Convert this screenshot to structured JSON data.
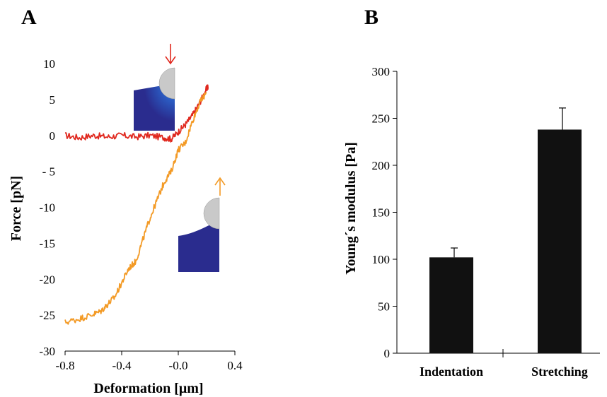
{
  "chart_data": [
    {
      "panel": "A",
      "type": "line",
      "title": "",
      "xlabel": "Deformation [μm]",
      "ylabel": "Force [pN]",
      "xlim": [
        -0.8,
        0.4
      ],
      "ylim": [
        -30,
        10
      ],
      "x_ticks": [
        -0.8,
        -0.4,
        0.0,
        0.4
      ],
      "x_tick_labels": [
        "-0.8",
        "-0.4",
        "-0.0",
        "0.4"
      ],
      "y_ticks": [
        10,
        5,
        0,
        -5,
        -10,
        -15,
        -20,
        -25,
        -30
      ],
      "y_tick_labels": [
        "10",
        "5",
        "0",
        "- 5",
        "-10",
        "-15",
        "-20",
        "-25",
        "-30"
      ],
      "grid": false,
      "legend": "none",
      "series": [
        {
          "color": "#e0281e",
          "arrow": "down",
          "x": [
            -0.8,
            -0.7,
            -0.6,
            -0.5,
            -0.4,
            -0.3,
            -0.2,
            -0.1,
            -0.05,
            0.0,
            0.05,
            0.1,
            0.15,
            0.2,
            0.21
          ],
          "y": [
            0,
            -0.3,
            0,
            -0.2,
            0,
            -0.2,
            0,
            -0.3,
            -0.5,
            0.5,
            1.5,
            2.8,
            4.5,
            6.5,
            6.8
          ]
        },
        {
          "color": "#f39a25",
          "arrow": "up",
          "x": [
            -0.8,
            -0.7,
            -0.62,
            -0.55,
            -0.5,
            -0.45,
            -0.4,
            -0.35,
            -0.3,
            -0.25,
            -0.2,
            -0.15,
            -0.1,
            -0.05,
            0.0,
            0.05,
            0.1,
            0.15,
            0.2
          ],
          "y": [
            -26,
            -25.5,
            -25,
            -24.5,
            -23.5,
            -22.5,
            -20.5,
            -18.5,
            -17.5,
            -14.5,
            -11.5,
            -9,
            -6.5,
            -5,
            -2,
            -1,
            2,
            4.5,
            6
          ]
        }
      ],
      "insets": [
        {
          "name": "approach-inset",
          "arrow_color": "#e0281e",
          "description_colors": [
            "#1f1f8f",
            "#2b7fd9",
            "#f0e04a",
            "#c8c8c8"
          ]
        },
        {
          "name": "retract-inset",
          "arrow_color": "#f39a25",
          "description_colors": [
            "#1f1f8f",
            "#c8c8c8"
          ]
        }
      ]
    },
    {
      "panel": "B",
      "type": "bar",
      "title": "",
      "xlabel": "",
      "ylabel": "Young´s modulus [Pa]",
      "categories": [
        "Indentation",
        "Stretching"
      ],
      "values": [
        102,
        238
      ],
      "errors": [
        10,
        23
      ],
      "ylim": [
        0,
        300
      ],
      "y_ticks": [
        0,
        50,
        100,
        150,
        200,
        250,
        300
      ],
      "bar_color": "#111111",
      "grid": false,
      "legend": "none"
    }
  ]
}
